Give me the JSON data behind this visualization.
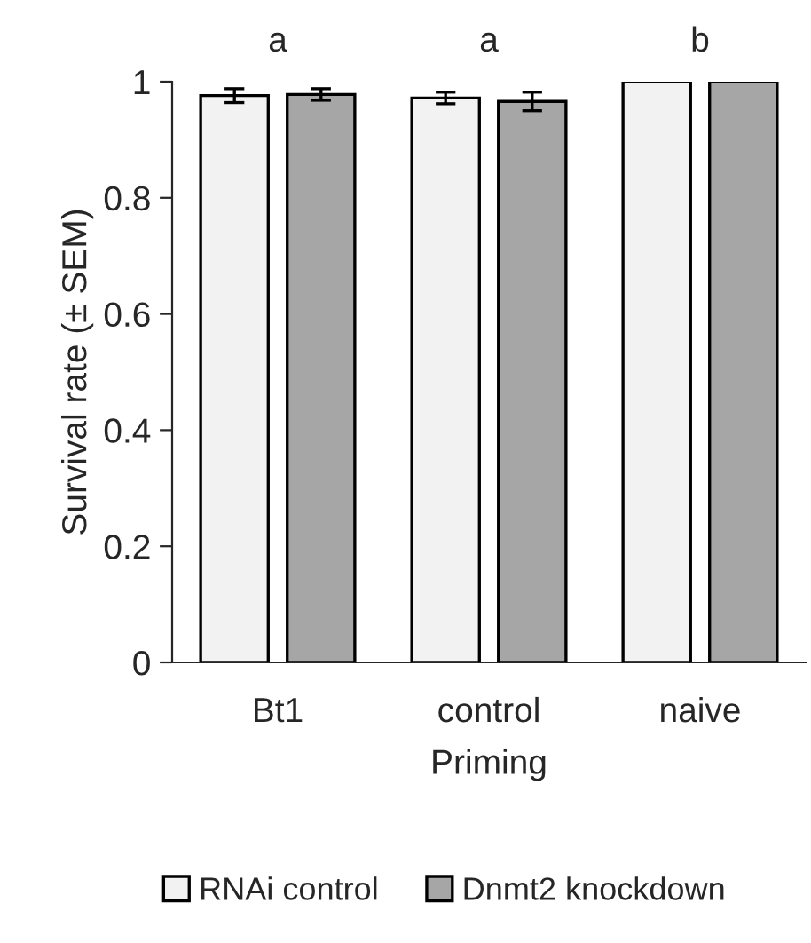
{
  "chart_data": {
    "type": "bar",
    "xlabel": "Priming",
    "ylabel": "Survival rate (± SEM)",
    "categories": [
      "Bt1",
      "control",
      "naive"
    ],
    "series": [
      {
        "name": "RNAi control",
        "color": "#f2f2f2",
        "values": [
          0.976,
          0.972,
          1.0
        ],
        "errors": [
          0.012,
          0.01,
          0
        ]
      },
      {
        "name": "Dnmt2 knockdown",
        "color": "#a6a6a6",
        "values": [
          0.978,
          0.966,
          1.0
        ],
        "errors": [
          0.01,
          0.016,
          0
        ]
      }
    ],
    "annotations": [
      "a",
      "a",
      "b"
    ],
    "ylim": [
      0,
      1
    ],
    "yticks": [
      0,
      0.2,
      0.4,
      0.6,
      0.8,
      1
    ],
    "grid": false,
    "legend": "bottom"
  }
}
